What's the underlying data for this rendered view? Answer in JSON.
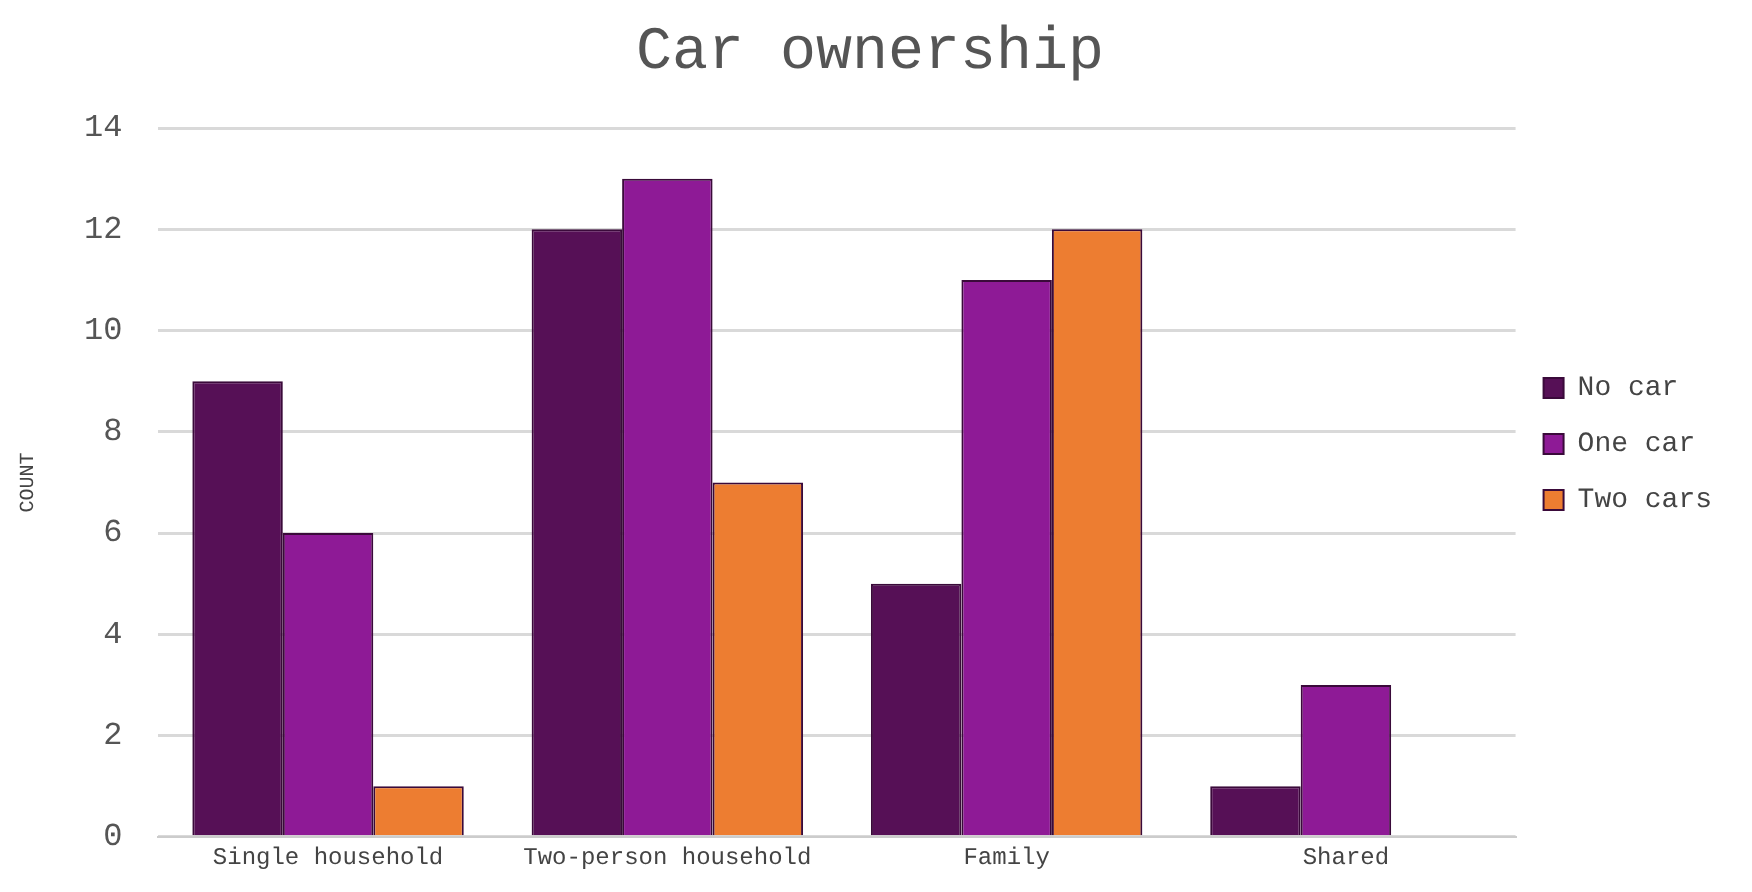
{
  "chart_data": {
    "type": "bar",
    "title": "Car ownership",
    "ylabel": "COUNT",
    "categories": [
      "Single household",
      "Two-person household",
      "Family",
      "Shared"
    ],
    "series": [
      {
        "name": "No car",
        "color": "#561056",
        "values": [
          9,
          12,
          5,
          1
        ]
      },
      {
        "name": "One car",
        "color": "#8e1a96",
        "values": [
          6,
          13,
          11,
          3
        ]
      },
      {
        "name": "Two cars",
        "color": "#ed7d31",
        "values": [
          1,
          7,
          12,
          0
        ]
      }
    ],
    "ylim": [
      0,
      14
    ],
    "yticks": [
      0,
      2,
      4,
      6,
      8,
      10,
      12,
      14
    ],
    "grid": "y",
    "legend": "right"
  }
}
